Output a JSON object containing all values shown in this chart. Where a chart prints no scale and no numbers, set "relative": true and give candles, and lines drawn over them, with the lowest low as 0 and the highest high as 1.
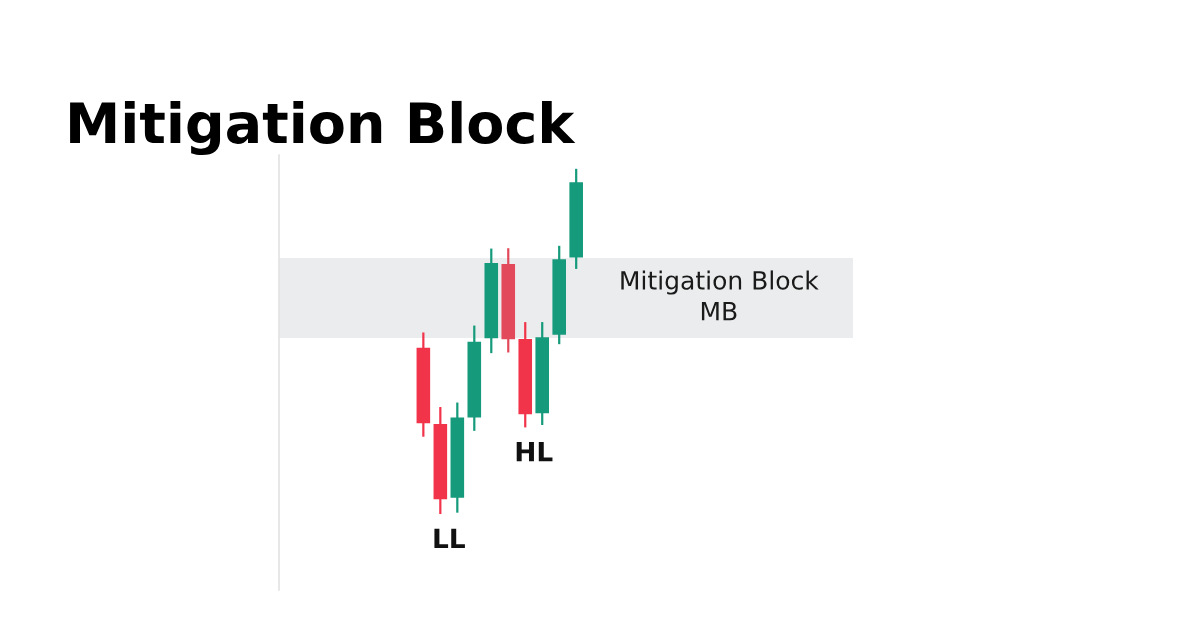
{
  "chart_data": {
    "type": "candlestick",
    "title": "Mitigation Block",
    "relative": true,
    "categories": [
      null,
      null,
      null,
      null,
      null,
      null,
      null,
      null,
      null,
      null
    ],
    "ohlc": [
      [
        0.482,
        0.526,
        0.224,
        0.263
      ],
      [
        0.261,
        0.31,
        0,
        0.043
      ],
      [
        0.047,
        0.323,
        0.004,
        0.28
      ],
      [
        0.28,
        0.546,
        0.241,
        0.499
      ],
      [
        0.509,
        0.769,
        0.466,
        0.727
      ],
      [
        0.724,
        0.77,
        0.468,
        0.506
      ],
      [
        0.507,
        0.556,
        0.251,
        0.289
      ],
      [
        0.292,
        0.556,
        0.258,
        0.512
      ],
      [
        0.519,
        0.777,
        0.492,
        0.738
      ],
      [
        0.743,
        1,
        0.71,
        0.961
      ]
    ],
    "colors": [
      "#f2344a",
      "#f2344a",
      "#159a7b",
      "#159a7b",
      "#159a7b",
      "#e2495a",
      "#f2344a",
      "#159a7b",
      "#159a7b",
      "#159a7b"
    ],
    "bands": [
      {
        "axis": "y",
        "from": 0.51,
        "to": 0.742,
        "label": "Mitigation Block\nMB",
        "color": "#ebeced"
      }
    ],
    "annotations": [
      "LL",
      "HL"
    ]
  }
}
